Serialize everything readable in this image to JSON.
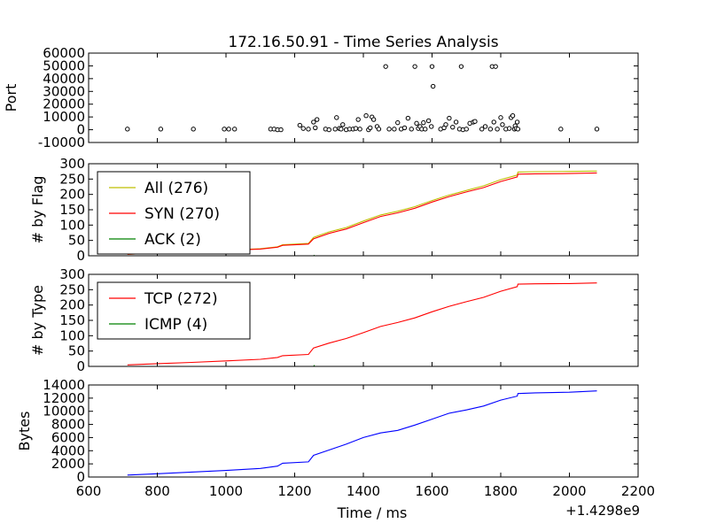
{
  "title": "172.16.50.91 - Time Series Analysis",
  "offset_label": "+1.4298e9",
  "chart_data": [
    {
      "type": "scatter",
      "ylabel": "Port",
      "xlim": [
        600,
        2200
      ],
      "ylim": [
        -10000,
        60000
      ],
      "yticks": [
        -10000,
        0,
        10000,
        20000,
        30000,
        40000,
        50000,
        60000
      ],
      "points": [
        [
          713,
          500
        ],
        [
          810,
          500
        ],
        [
          905,
          500
        ],
        [
          995,
          500
        ],
        [
          1008,
          500
        ],
        [
          1025,
          500
        ],
        [
          1130,
          500
        ],
        [
          1140,
          500
        ],
        [
          1150,
          0
        ],
        [
          1160,
          0
        ],
        [
          1215,
          3500
        ],
        [
          1225,
          1000
        ],
        [
          1240,
          500
        ],
        [
          1255,
          6000
        ],
        [
          1260,
          1500
        ],
        [
          1265,
          8000
        ],
        [
          1290,
          500
        ],
        [
          1300,
          0
        ],
        [
          1318,
          500
        ],
        [
          1322,
          9500
        ],
        [
          1330,
          1000
        ],
        [
          1335,
          500
        ],
        [
          1340,
          4000
        ],
        [
          1350,
          0
        ],
        [
          1360,
          500
        ],
        [
          1370,
          500
        ],
        [
          1378,
          1000
        ],
        [
          1385,
          8000
        ],
        [
          1390,
          500
        ],
        [
          1408,
          11000
        ],
        [
          1415,
          0
        ],
        [
          1420,
          1500
        ],
        [
          1425,
          10000
        ],
        [
          1430,
          8000
        ],
        [
          1440,
          2500
        ],
        [
          1445,
          500
        ],
        [
          1465,
          49500
        ],
        [
          1475,
          500
        ],
        [
          1490,
          500
        ],
        [
          1500,
          5500
        ],
        [
          1510,
          500
        ],
        [
          1520,
          1500
        ],
        [
          1530,
          9000
        ],
        [
          1540,
          500
        ],
        [
          1550,
          49500
        ],
        [
          1555,
          5000
        ],
        [
          1560,
          1000
        ],
        [
          1565,
          2500
        ],
        [
          1570,
          500
        ],
        [
          1575,
          5500
        ],
        [
          1580,
          500
        ],
        [
          1590,
          7000
        ],
        [
          1598,
          2500
        ],
        [
          1600,
          49500
        ],
        [
          1603,
          34000
        ],
        [
          1625,
          500
        ],
        [
          1635,
          1500
        ],
        [
          1640,
          4000
        ],
        [
          1650,
          9000
        ],
        [
          1660,
          2000
        ],
        [
          1670,
          6000
        ],
        [
          1680,
          500
        ],
        [
          1685,
          49500
        ],
        [
          1690,
          0
        ],
        [
          1700,
          500
        ],
        [
          1710,
          5000
        ],
        [
          1720,
          6000
        ],
        [
          1725,
          6500
        ],
        [
          1745,
          500
        ],
        [
          1755,
          2500
        ],
        [
          1770,
          500
        ],
        [
          1775,
          49500
        ],
        [
          1780,
          6000
        ],
        [
          1785,
          49500
        ],
        [
          1790,
          500
        ],
        [
          1800,
          9500
        ],
        [
          1805,
          4000
        ],
        [
          1815,
          500
        ],
        [
          1825,
          1000
        ],
        [
          1830,
          9500
        ],
        [
          1835,
          11000
        ],
        [
          1840,
          500
        ],
        [
          1842,
          3000
        ],
        [
          1845,
          1000
        ],
        [
          1848,
          6000
        ],
        [
          1850,
          500
        ],
        [
          1975,
          500
        ],
        [
          2080,
          500
        ]
      ]
    },
    {
      "type": "line",
      "ylabel": "# by Flag",
      "xlim": [
        600,
        2200
      ],
      "ylim": [
        0,
        300
      ],
      "yticks": [
        0,
        50,
        100,
        150,
        200,
        250,
        300
      ],
      "legend_loc": "upper-left",
      "series": [
        {
          "name": "All (276)",
          "color": "#bfbf00",
          "x": [
            713,
            800,
            900,
            1000,
            1100,
            1150,
            1165,
            1240,
            1255,
            1300,
            1350,
            1400,
            1450,
            1500,
            1550,
            1600,
            1650,
            1700,
            1750,
            1800,
            1848,
            1850,
            1900,
            2000,
            2080
          ],
          "y": [
            5,
            9,
            13,
            18,
            23,
            29,
            36,
            40,
            60,
            78,
            92,
            113,
            133,
            145,
            160,
            180,
            198,
            213,
            228,
            248,
            263,
            273,
            274,
            275,
            276
          ]
        },
        {
          "name": "SYN (270)",
          "color": "#ff0000",
          "x": [
            713,
            800,
            900,
            1000,
            1100,
            1150,
            1165,
            1240,
            1255,
            1300,
            1350,
            1400,
            1450,
            1500,
            1550,
            1600,
            1650,
            1700,
            1750,
            1800,
            1848,
            1850,
            1900,
            2000,
            2080
          ],
          "y": [
            5,
            9,
            13,
            18,
            22,
            28,
            34,
            38,
            55,
            73,
            87,
            108,
            128,
            140,
            155,
            175,
            193,
            208,
            222,
            242,
            257,
            266,
            267,
            268,
            270
          ]
        },
        {
          "name": "ACK (2)",
          "color": "#008000",
          "x": [
            1255,
            1258
          ],
          "y": [
            0,
            2
          ]
        }
      ]
    },
    {
      "type": "line",
      "ylabel": "# by Type",
      "xlim": [
        600,
        2200
      ],
      "ylim": [
        0,
        300
      ],
      "yticks": [
        0,
        50,
        100,
        150,
        200,
        250,
        300
      ],
      "legend_loc": "upper-left",
      "series": [
        {
          "name": "TCP (272)",
          "color": "#ff0000",
          "x": [
            713,
            800,
            900,
            1000,
            1100,
            1150,
            1165,
            1240,
            1255,
            1300,
            1350,
            1400,
            1450,
            1500,
            1550,
            1600,
            1650,
            1700,
            1750,
            1800,
            1848,
            1850,
            1900,
            2000,
            2080
          ],
          "y": [
            5,
            9,
            13,
            18,
            23,
            29,
            35,
            39,
            60,
            76,
            91,
            110,
            130,
            143,
            158,
            178,
            196,
            211,
            225,
            245,
            260,
            268,
            269,
            270,
            272
          ]
        },
        {
          "name": "ICMP (4)",
          "color": "#008000",
          "x": [
            1255,
            1258
          ],
          "y": [
            0,
            4
          ]
        }
      ]
    },
    {
      "type": "line",
      "ylabel": "Bytes",
      "xlabel": "Time / ms",
      "xlim": [
        600,
        2200
      ],
      "ylim": [
        0,
        14000
      ],
      "yticks": [
        0,
        2000,
        4000,
        6000,
        8000,
        10000,
        12000,
        14000
      ],
      "xticks": [
        600,
        800,
        1000,
        1200,
        1400,
        1600,
        1800,
        2000,
        2200
      ],
      "series": [
        {
          "name": "",
          "color": "#0000ff",
          "x": [
            713,
            800,
            900,
            1000,
            1100,
            1150,
            1165,
            1240,
            1255,
            1300,
            1350,
            1400,
            1450,
            1500,
            1550,
            1600,
            1650,
            1700,
            1750,
            1800,
            1848,
            1850,
            1900,
            2000,
            2080
          ],
          "y": [
            300,
            500,
            750,
            1000,
            1300,
            1650,
            2100,
            2300,
            3300,
            4100,
            5000,
            6000,
            6700,
            7100,
            7900,
            8800,
            9700,
            10200,
            10800,
            11700,
            12300,
            12700,
            12800,
            12900,
            13100
          ]
        }
      ]
    }
  ]
}
